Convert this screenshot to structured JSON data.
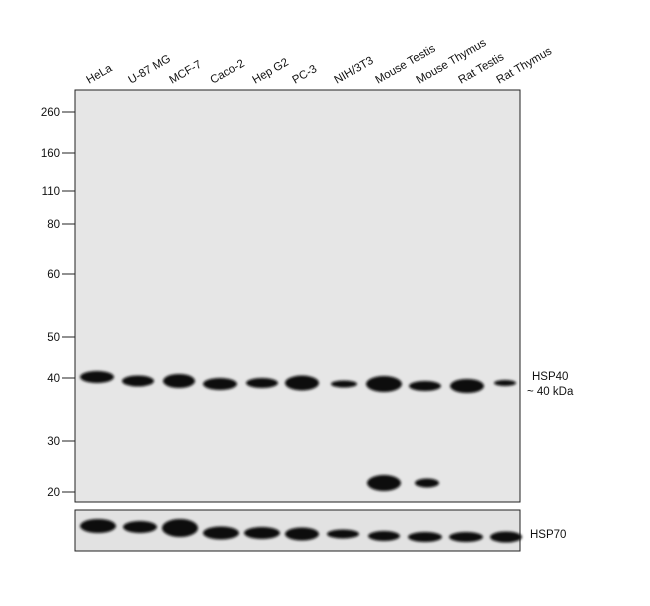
{
  "lanes": [
    "HeLa",
    "U-87 MG",
    "MCF-7",
    "Caco-2",
    "Hep G2",
    "PC-3",
    "NIH/3T3",
    "Mouse Testis",
    "Mouse Thymus",
    "Rat Testis",
    "Rat Thymus"
  ],
  "markers": [
    "260",
    "160",
    "110",
    "80",
    "60",
    "50",
    "40",
    "30",
    "20"
  ],
  "target": {
    "name": "HSP40",
    "size": "~ 40 kDa"
  },
  "control": {
    "name": "HSP70"
  }
}
